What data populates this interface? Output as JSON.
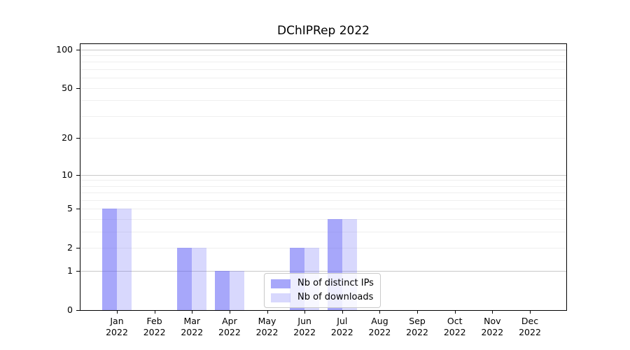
{
  "chart_data": {
    "type": "bar",
    "title": "DChIPRep 2022",
    "categories": [
      "Jan",
      "Feb",
      "Mar",
      "Apr",
      "May",
      "Jun",
      "Jul",
      "Aug",
      "Sep",
      "Oct",
      "Nov",
      "Dec"
    ],
    "year_label": "2022",
    "series": [
      {
        "name": "Nb of distinct IPs",
        "color": "rgba(95,95,246,0.55)",
        "values": [
          5,
          0,
          2,
          1,
          0,
          2,
          4,
          0,
          0,
          0,
          0,
          0
        ]
      },
      {
        "name": "Nb of downloads",
        "color": "rgba(95,95,246,0.245)",
        "values": [
          5,
          0,
          2,
          1,
          0,
          2,
          4,
          0,
          0,
          0,
          0,
          0
        ]
      }
    ],
    "y_axis": {
      "scale": "log1p",
      "ticks": [
        0,
        1,
        2,
        5,
        10,
        20,
        50,
        100
      ],
      "max": 110,
      "major_gridlines": [
        1,
        10,
        100
      ],
      "minor_gridlines": [
        2,
        3,
        4,
        5,
        6,
        7,
        8,
        9,
        20,
        30,
        40,
        50,
        60,
        70,
        80,
        90
      ]
    },
    "x_axis": {
      "tick_label_format": "month-over-year"
    },
    "legend": {
      "position": "lower-center",
      "background_alpha": 0.8
    },
    "colors": {
      "major_grid": "#c9c9c9",
      "minor_grid": "#efefef",
      "spine": "#000000",
      "text": "#000000"
    },
    "grid": true
  }
}
